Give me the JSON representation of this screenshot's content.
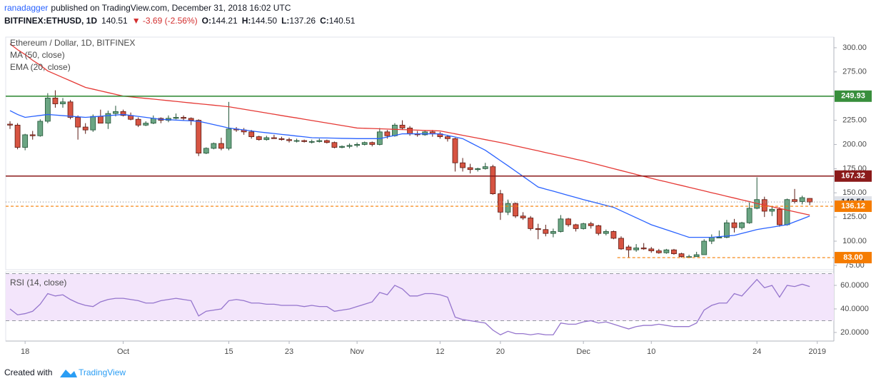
{
  "header": {
    "author": "ranadagger",
    "published": "published on TradingView.com, December 31, 2018 16:02 UTC",
    "symbol": "BITFINEX:ETHUSD, 1D",
    "price": "140.51",
    "change": "▼ -3.69 (-2.56%)",
    "ohlc": [
      {
        "key": "O:",
        "value": "144.21"
      },
      {
        "key": "H:",
        "value": "144.50"
      },
      {
        "key": "L:",
        "value": "137.26"
      },
      {
        "key": "C:",
        "value": "140.51"
      }
    ]
  },
  "footer": {
    "text": "Created with",
    "brand": "TradingView"
  },
  "chart_data": [
    {
      "type": "candlestick",
      "title": "Ethereum / Dollar, 1D, BITFINEX",
      "up_color": "#6ba583",
      "down_color": "#d75442",
      "up_border": "#225437",
      "down_border": "#5b1a13",
      "xlim": [
        -0.57,
        109.2
      ],
      "ylim": [
        70.5,
        311
      ],
      "yticks": [
        {
          "value": 75,
          "label": "75.00"
        },
        {
          "value": 100,
          "label": "100.00"
        },
        {
          "value": 125,
          "label": "125.00"
        },
        {
          "value": 150,
          "label": "150.00"
        },
        {
          "value": 175,
          "label": "175.00"
        },
        {
          "value": 200,
          "label": "200.00"
        },
        {
          "value": 225,
          "label": "225.00"
        },
        {
          "value": 250,
          "label": "250.00"
        },
        {
          "value": 275,
          "label": "275.00"
        },
        {
          "value": 300,
          "label": "300.00"
        }
      ],
      "grid": false,
      "ohlc": {
        "open": [
          221,
          220,
          197,
          210,
          209,
          224,
          248,
          242,
          244,
          228,
          218,
          215,
          229,
          222,
          232,
          234,
          230,
          226,
          220,
          222,
          227,
          225,
          227,
          228,
          227,
          225,
          191,
          196,
          201,
          196,
          216,
          215,
          213,
          208,
          205,
          207,
          206,
          205,
          204,
          204,
          203,
          203,
          204,
          202,
          197,
          198,
          199,
          200,
          202,
          200,
          213,
          209,
          220,
          217,
          211,
          210,
          213,
          211,
          208,
          206,
          181,
          176,
          174,
          175,
          177,
          149,
          130,
          139,
          126,
          124,
          113,
          112,
          108,
          110,
          123,
          117,
          113,
          118,
          116,
          108,
          110,
          103,
          94,
          91,
          93,
          92,
          90,
          88,
          91,
          87,
          84,
          84,
          86,
          100,
          104,
          104,
          119,
          114,
          119,
          134,
          143,
          131,
          133,
          117,
          143,
          141,
          144.21
        ],
        "high": [
          224,
          222,
          211,
          214,
          226,
          253,
          256,
          248,
          246,
          230,
          222,
          231,
          236,
          235,
          240,
          236,
          233,
          228,
          224,
          230,
          228,
          230,
          232,
          230,
          228,
          226,
          197,
          202,
          207,
          244,
          218,
          217,
          215,
          209,
          209,
          210,
          208,
          207,
          206,
          205,
          205,
          206,
          205,
          203,
          199,
          201,
          202,
          203,
          203,
          217,
          215,
          222,
          225,
          219,
          214,
          214,
          215,
          213,
          210,
          207,
          186,
          180,
          176,
          181,
          179,
          153,
          143,
          140,
          130,
          126,
          118,
          117,
          113,
          127,
          124,
          118,
          119,
          120,
          117,
          112,
          111,
          105,
          96,
          97,
          98,
          94,
          92,
          92,
          92,
          88,
          86,
          89,
          102,
          107,
          111,
          122,
          123,
          120,
          140,
          166,
          146,
          136,
          135,
          144,
          154,
          147,
          144.5
        ],
        "low": [
          216,
          195,
          194,
          205,
          208,
          222,
          238,
          238,
          226,
          205,
          211,
          213,
          222,
          216,
          229,
          229,
          225,
          218,
          219,
          221,
          222,
          223,
          226,
          225,
          220,
          188,
          190,
          195,
          194,
          194,
          213,
          210,
          206,
          204,
          204,
          206,
          204,
          202,
          202,
          202,
          201,
          202,
          201,
          196,
          196,
          196,
          197,
          199,
          198,
          199,
          206,
          208,
          215,
          209,
          208,
          209,
          208,
          206,
          203,
          172,
          172,
          170,
          172,
          174,
          148,
          122,
          127,
          124,
          122,
          111,
          102,
          105,
          104,
          109,
          115,
          110,
          112,
          113,
          106,
          106,
          102,
          91,
          83,
          89,
          91,
          88,
          87,
          87,
          86,
          83,
          83,
          84,
          86,
          97,
          103,
          103,
          109,
          112,
          118,
          133,
          125,
          126,
          115,
          116,
          139,
          138,
          137.26
        ],
        "close": [
          220,
          197,
          210,
          209,
          224,
          248,
          242,
          244,
          228,
          218,
          215,
          229,
          222,
          232,
          234,
          230,
          226,
          220,
          222,
          227,
          225,
          227,
          228,
          227,
          225,
          191,
          196,
          201,
          196,
          216,
          215,
          213,
          208,
          205,
          207,
          206,
          205,
          204,
          204,
          203,
          203,
          204,
          202,
          197,
          198,
          199,
          200,
          202,
          200,
          213,
          209,
          220,
          217,
          211,
          210,
          213,
          211,
          208,
          206,
          181,
          176,
          174,
          175,
          177,
          149,
          130,
          139,
          126,
          124,
          113,
          112,
          108,
          110,
          123,
          117,
          113,
          118,
          116,
          108,
          110,
          103,
          92,
          91,
          93,
          92,
          90,
          88,
          91,
          87,
          84,
          84,
          86,
          100,
          104,
          104,
          119,
          114,
          119,
          134,
          143,
          131,
          133,
          117,
          143,
          141,
          145,
          140.51
        ]
      },
      "series": [
        {
          "name": "MA (50, close)",
          "color": "#e53935",
          "values": [
            304,
            298,
            293,
            287,
            282,
            276,
            272.6,
            269.2,
            265.8,
            262.4,
            259,
            257.2,
            255.4,
            253.6,
            251.8,
            250,
            249.2,
            248.4,
            247.6,
            246.9,
            246.1,
            245.3,
            244.5,
            243.7,
            242.9,
            242.1,
            241.4,
            240.6,
            239.8,
            239,
            237.7,
            236.4,
            235.1,
            233.8,
            232.5,
            231.2,
            229.9,
            228.6,
            227.4,
            226.1,
            224.8,
            223.5,
            222.2,
            220.9,
            219.6,
            218.3,
            217,
            216.7,
            216.5,
            216.2,
            215.9,
            215.6,
            215.4,
            215.1,
            214.8,
            214.5,
            214.3,
            214,
            212.5,
            211,
            209.5,
            208,
            206.5,
            205,
            203.5,
            202,
            200.3,
            198.5,
            196.8,
            195.1,
            193.4,
            191.6,
            189.9,
            188.2,
            186.5,
            184.7,
            183,
            181,
            179,
            177,
            175,
            173,
            171,
            169,
            167,
            165,
            163.1,
            161.3,
            159.4,
            157.6,
            155.7,
            153.9,
            152,
            150.1,
            148.3,
            146.4,
            144.6,
            142.7,
            140.9,
            139,
            137.3,
            135.6,
            133.9,
            132.1,
            130.4,
            128.7,
            127
          ]
        },
        {
          "name": "EMA (20, close)",
          "color": "#2962ff",
          "values": [
            235,
            231,
            228,
            229,
            230,
            231,
            230.4,
            229.8,
            229.2,
            228.6,
            228,
            228.6,
            229.2,
            229.8,
            230.4,
            231,
            230,
            229,
            228,
            227,
            226,
            225.6,
            225.2,
            224.8,
            224.4,
            224,
            222.3,
            220.5,
            218.8,
            217,
            216,
            215,
            214,
            213,
            212.1,
            211.3,
            210.4,
            209.6,
            208.7,
            207.9,
            207,
            206.8,
            206.7,
            206.5,
            206.3,
            206.2,
            206,
            206,
            206,
            206,
            207.7,
            209.3,
            211,
            211,
            211,
            211,
            211,
            211,
            209.3,
            207.7,
            206,
            202,
            198,
            194,
            188.7,
            183.3,
            178,
            172.5,
            167,
            161.5,
            156,
            153.8,
            151.7,
            149.5,
            147.3,
            145.2,
            143,
            141,
            139,
            137,
            135,
            131.4,
            127.8,
            124.2,
            120.6,
            117,
            114.4,
            111.8,
            109.2,
            106.6,
            104,
            104,
            104,
            104,
            104.7,
            105.3,
            106,
            108,
            110,
            112,
            113.3,
            114.5,
            115.8,
            117,
            120,
            123,
            126
          ]
        }
      ],
      "levels": [
        {
          "value": 249.93,
          "color": "#388e3c",
          "dash": false
        },
        {
          "value": 167.32,
          "color": "#8b1a1a",
          "dash": false
        },
        {
          "value": 140.51,
          "color": "#dfe2e8",
          "label_color": "#131722",
          "dash": true
        },
        {
          "value": 136.12,
          "color": "#f57c00",
          "dash": true
        },
        {
          "value": 83,
          "label": "83.00",
          "color": "#f57c00",
          "dash": true,
          "x_start": 80.5
        }
      ]
    },
    {
      "type": "line",
      "title": "RSI (14, close)",
      "xlim": [
        -0.57,
        109.2
      ],
      "xticks": [
        {
          "value": 2,
          "label": "18"
        },
        {
          "value": 15,
          "label": "Oct"
        },
        {
          "value": 29,
          "label": "15"
        },
        {
          "value": 37,
          "label": "23"
        },
        {
          "value": 46,
          "label": "Nov"
        },
        {
          "value": 57,
          "label": "12"
        },
        {
          "value": 65,
          "label": "20"
        },
        {
          "value": 76,
          "label": "Dec"
        },
        {
          "value": 85,
          "label": "10"
        },
        {
          "value": 99,
          "label": "24"
        },
        {
          "value": 107,
          "label": "2019"
        }
      ],
      "ylim": [
        12.7,
        71.5
      ],
      "yticks": [
        {
          "value": 20,
          "label": "20.0000"
        },
        {
          "value": 40,
          "label": "40.0000"
        },
        {
          "value": 60,
          "label": "60.0000"
        }
      ],
      "band": [
        30,
        70
      ],
      "band_color": "#f3e5fb",
      "series": [
        {
          "name": "RSI (14, close)",
          "color": "#9575cd",
          "values": [
            40,
            35,
            36,
            38,
            44,
            53,
            51,
            52,
            48,
            45,
            43,
            42,
            46,
            48,
            49,
            49,
            48,
            47,
            45,
            45,
            47,
            48,
            49,
            48,
            47,
            34,
            38,
            39,
            40,
            47,
            48,
            47,
            45,
            45,
            44,
            44,
            43,
            43,
            43,
            42,
            43,
            42,
            42,
            38,
            39,
            40,
            42,
            44,
            46,
            54,
            52,
            60,
            57,
            51,
            51,
            53,
            53,
            52,
            50,
            33,
            31,
            30,
            29,
            28,
            22,
            18,
            21,
            19,
            19,
            18,
            19,
            18,
            18,
            28,
            27,
            27,
            29,
            30,
            28,
            29,
            27,
            25,
            23,
            25,
            26,
            26,
            27,
            26,
            25,
            25,
            25,
            28,
            39,
            43,
            45,
            45,
            53,
            51,
            58,
            65,
            58,
            60,
            50,
            60,
            59,
            61,
            59
          ]
        }
      ]
    }
  ]
}
